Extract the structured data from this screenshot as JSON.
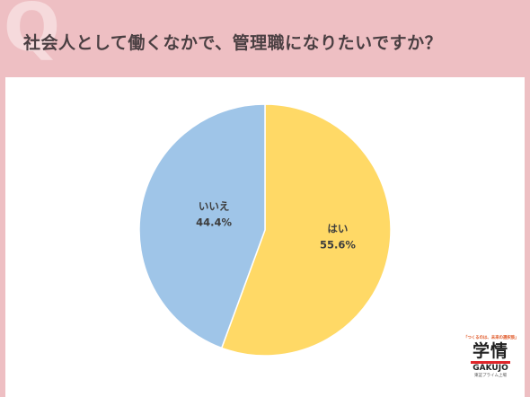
{
  "header": {
    "q_mark": "Q",
    "question": "社会人として働くなかで、管理職になりたいですか？"
  },
  "chart_data": {
    "type": "pie",
    "start": "top",
    "direction": "clockwise",
    "slices": [
      {
        "label": "はい",
        "value": 55.6,
        "display": "55.6%",
        "color": "#ffd966"
      },
      {
        "label": "いいえ",
        "value": 44.4,
        "display": "44.4%",
        "color": "#9fc5e8"
      }
    ]
  },
  "logo": {
    "tagline": "「つくるのは、未来の選択肢」",
    "kanji": "学情",
    "en": "GAKUJO",
    "sub": "東証プライム上場"
  }
}
